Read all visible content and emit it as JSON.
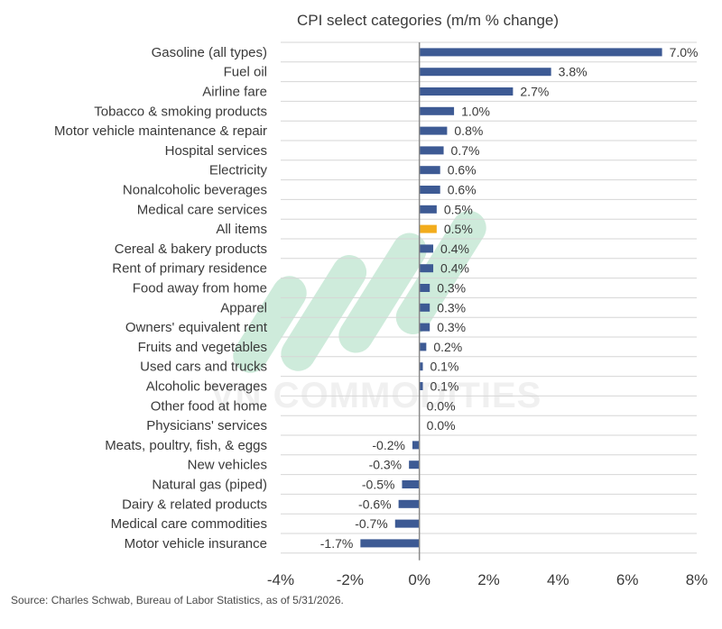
{
  "chart_data": {
    "type": "bar",
    "orientation": "horizontal",
    "title": "CPI select categories (m/m % change)",
    "categories": [
      "Gasoline (all types)",
      "Fuel oil",
      "Airline fare",
      "Tobacco & smoking products",
      "Motor vehicle maintenance & repair",
      "Hospital services",
      "Electricity",
      "Nonalcoholic beverages",
      "Medical care services",
      "All items",
      "Cereal & bakery products",
      "Rent of primary residence",
      "Food away from home",
      "Apparel",
      "Owners' equivalent rent",
      "Fruits and vegetables",
      "Used cars and trucks",
      "Alcoholic beverages",
      "Other food at home",
      "Physicians' services",
      "Meats, poultry, fish, & eggs",
      "New vehicles",
      "Natural gas (piped)",
      "Dairy & related products",
      "Medical care commodities",
      "Motor vehicle insurance"
    ],
    "values": [
      7.0,
      3.8,
      2.7,
      1.0,
      0.8,
      0.7,
      0.6,
      0.6,
      0.5,
      0.5,
      0.4,
      0.4,
      0.3,
      0.3,
      0.3,
      0.2,
      0.1,
      0.1,
      0.0,
      0.0,
      -0.2,
      -0.3,
      -0.5,
      -0.6,
      -0.7,
      -1.7
    ],
    "value_labels": [
      "7.0%",
      "3.8%",
      "2.7%",
      "1.0%",
      "0.8%",
      "0.7%",
      "0.6%",
      "0.6%",
      "0.5%",
      "0.5%",
      "0.4%",
      "0.4%",
      "0.3%",
      "0.3%",
      "0.3%",
      "0.2%",
      "0.1%",
      "0.1%",
      "0.0%",
      "0.0%",
      "-0.2%",
      "-0.3%",
      "-0.5%",
      "-0.6%",
      "-0.7%",
      "-1.7%"
    ],
    "highlight_category": "All items",
    "xlim": [
      -4,
      8
    ],
    "xticks": [
      -4,
      -2,
      0,
      2,
      4,
      6,
      8
    ],
    "xtick_labels": [
      "-4%",
      "-2%",
      "0%",
      "2%",
      "4%",
      "6%",
      "8%"
    ],
    "xlabel": "",
    "ylabel": "",
    "grid": "horizontal row lines",
    "colors": {
      "bar": "#3d5a94",
      "highlight": "#f2ac1c",
      "grid": "#d6d6d6",
      "zero_line": "#8a8a8a",
      "text": "#3a3a3a"
    }
  },
  "source": "Source: Charles Schwab, Bureau of Labor Statistics, as of  5/31/2026.",
  "watermark": "VN COMMODITIES"
}
